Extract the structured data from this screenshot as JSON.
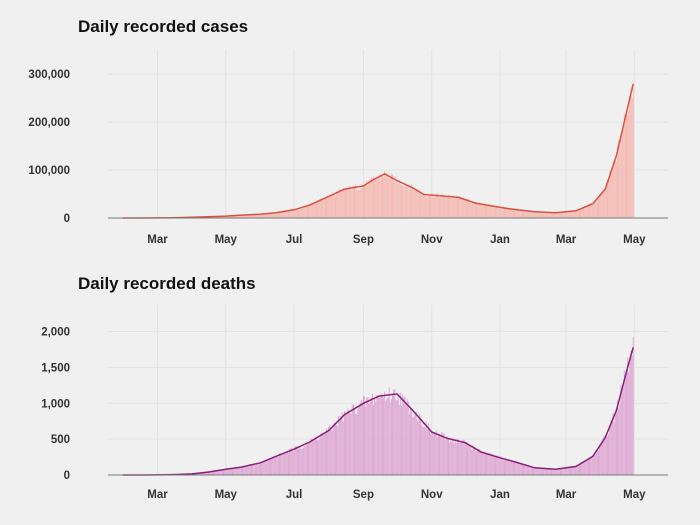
{
  "chart_data": [
    {
      "type": "bar",
      "title": "Daily recorded cases",
      "x_tick_labels": [
        "Mar",
        "May",
        "Jul",
        "Sep",
        "Nov",
        "Jan",
        "Mar",
        "May"
      ],
      "x_tick_dates": [
        "2020-03-01",
        "2020-05-01",
        "2020-07-01",
        "2020-09-01",
        "2020-11-01",
        "2021-01-01",
        "2021-03-01",
        "2021-05-01"
      ],
      "x_range": [
        "2020-01-15",
        "2021-05-15"
      ],
      "y_ticks": [
        0,
        100000,
        200000,
        300000
      ],
      "y_tick_labels": [
        "0",
        "100,000",
        "200,000",
        "300,000"
      ],
      "ylim": [
        0,
        340000
      ],
      "grid": true,
      "bar_color": "#f4b8b0",
      "line_color": "#d9523f",
      "series": [
        {
          "kind": "7-day average line over daily bars",
          "points": [
            [
              "2020-01-30",
              0
            ],
            [
              "2020-02-15",
              50
            ],
            [
              "2020-03-01",
              200
            ],
            [
              "2020-03-15",
              500
            ],
            [
              "2020-04-01",
              1500
            ],
            [
              "2020-04-15",
              2500
            ],
            [
              "2020-05-01",
              4000
            ],
            [
              "2020-05-15",
              6000
            ],
            [
              "2020-06-01",
              8000
            ],
            [
              "2020-06-15",
              11000
            ],
            [
              "2020-07-01",
              17000
            ],
            [
              "2020-07-15",
              27000
            ],
            [
              "2020-08-01",
              45000
            ],
            [
              "2020-08-15",
              60000
            ],
            [
              "2020-09-01",
              67000
            ],
            [
              "2020-09-10",
              80000
            ],
            [
              "2020-09-20",
              92000
            ],
            [
              "2020-10-01",
              78000
            ],
            [
              "2020-10-15",
              63000
            ],
            [
              "2020-10-25",
              49000
            ],
            [
              "2020-11-10",
              46000
            ],
            [
              "2020-11-25",
              43000
            ],
            [
              "2020-12-10",
              31000
            ],
            [
              "2020-12-25",
              25000
            ],
            [
              "2021-01-10",
              19000
            ],
            [
              "2021-02-01",
              13000
            ],
            [
              "2021-02-20",
              11000
            ],
            [
              "2021-03-10",
              15000
            ],
            [
              "2021-03-25",
              30000
            ],
            [
              "2021-04-05",
              60000
            ],
            [
              "2021-04-15",
              130000
            ],
            [
              "2021-04-25",
              230000
            ],
            [
              "2021-04-30",
              280000
            ]
          ]
        }
      ]
    },
    {
      "type": "bar",
      "title": "Daily recorded deaths",
      "x_tick_labels": [
        "Mar",
        "May",
        "Jul",
        "Sep",
        "Nov",
        "Jan",
        "Mar",
        "May"
      ],
      "x_tick_dates": [
        "2020-03-01",
        "2020-05-01",
        "2020-07-01",
        "2020-09-01",
        "2020-11-01",
        "2021-01-01",
        "2021-03-01",
        "2021-05-01"
      ],
      "x_range": [
        "2020-01-15",
        "2021-05-15"
      ],
      "y_ticks": [
        0,
        500,
        1000,
        1500,
        2000
      ],
      "y_tick_labels": [
        "0",
        "500",
        "1,000",
        "1,500",
        "2,000"
      ],
      "ylim": [
        0,
        2300
      ],
      "grid": true,
      "bar_color": "#dea6d2",
      "line_color": "#8a1f7a",
      "series": [
        {
          "kind": "7-day average line over daily bars",
          "points": [
            [
              "2020-01-30",
              0
            ],
            [
              "2020-02-15",
              0
            ],
            [
              "2020-03-01",
              2
            ],
            [
              "2020-03-15",
              5
            ],
            [
              "2020-04-01",
              15
            ],
            [
              "2020-04-15",
              40
            ],
            [
              "2020-05-01",
              80
            ],
            [
              "2020-05-15",
              110
            ],
            [
              "2020-06-01",
              170
            ],
            [
              "2020-06-15",
              260
            ],
            [
              "2020-07-01",
              360
            ],
            [
              "2020-07-15",
              460
            ],
            [
              "2020-08-01",
              620
            ],
            [
              "2020-08-15",
              840
            ],
            [
              "2020-09-01",
              1000
            ],
            [
              "2020-09-15",
              1100
            ],
            [
              "2020-10-01",
              1130
            ],
            [
              "2020-10-15",
              900
            ],
            [
              "2020-11-01",
              600
            ],
            [
              "2020-11-15",
              510
            ],
            [
              "2020-12-01",
              450
            ],
            [
              "2020-12-15",
              320
            ],
            [
              "2021-01-01",
              240
            ],
            [
              "2021-01-15",
              180
            ],
            [
              "2021-02-01",
              100
            ],
            [
              "2021-02-20",
              80
            ],
            [
              "2021-03-10",
              120
            ],
            [
              "2021-03-25",
              260
            ],
            [
              "2021-04-05",
              520
            ],
            [
              "2021-04-15",
              900
            ],
            [
              "2021-04-25",
              1500
            ],
            [
              "2021-04-30",
              1780
            ]
          ]
        }
      ]
    }
  ]
}
